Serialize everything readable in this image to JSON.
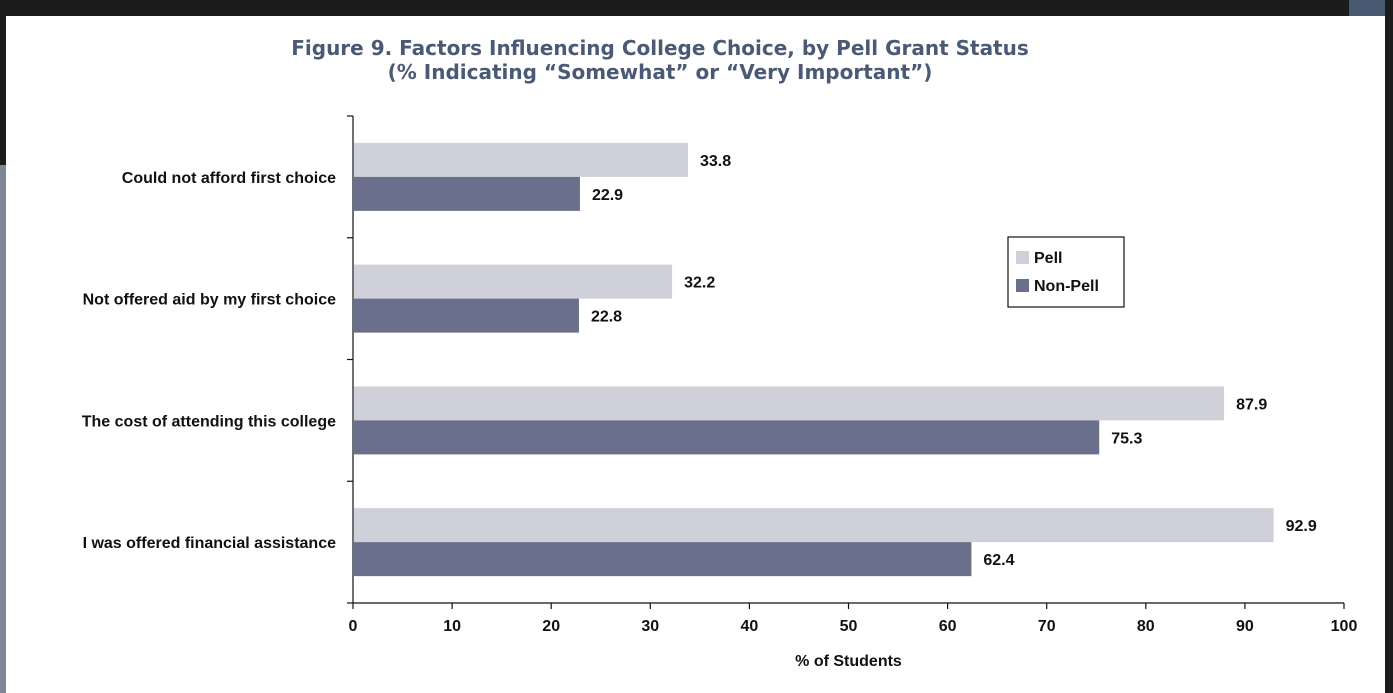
{
  "chart_data": {
    "type": "bar",
    "orientation": "horizontal",
    "title": "Figure 9. Factors Influencing College Choice, by Pell Grant Status",
    "subtitle": "(% Indicating “Somewhat” or “Very Important”)",
    "categories": [
      "Could not afford first choice",
      "Not offered aid by my first choice",
      "The cost of attending this college",
      "I was offered financial assistance"
    ],
    "series": [
      {
        "name": "Pell",
        "color": "#d0d0da",
        "values": [
          33.8,
          32.2,
          87.9,
          92.9
        ]
      },
      {
        "name": "Non-Pell",
        "color": "#6a6f8b",
        "values": [
          22.9,
          22.8,
          75.3,
          62.4
        ]
      }
    ],
    "xlabel": "% of Students",
    "ylabel": "",
    "xlim": [
      0,
      100
    ],
    "xticks": [
      0,
      10,
      20,
      30,
      40,
      50,
      60,
      70,
      80,
      90,
      100
    ],
    "grid": false,
    "legend_position": "right"
  }
}
